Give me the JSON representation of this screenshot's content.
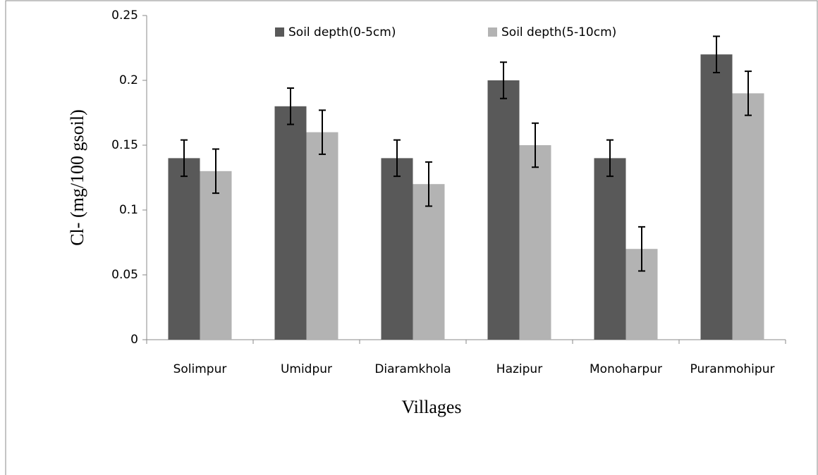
{
  "chart_data": {
    "type": "bar",
    "y_label": "Cl-  (mg/100 gsoil)",
    "x_label": "Villages",
    "categories": [
      "Solimpur",
      "Umidpur",
      "Diaramkhola",
      "Hazipur",
      "Monoharpur",
      "Puranmohipur"
    ],
    "series": [
      {
        "name": "Soil depth(0-5cm)",
        "color": "#595959",
        "values": [
          0.14,
          0.18,
          0.14,
          0.2,
          0.14,
          0.22
        ],
        "errors": [
          0.014,
          0.014,
          0.014,
          0.014,
          0.014,
          0.014
        ]
      },
      {
        "name": "Soil depth(5-10cm)",
        "color": "#b3b3b3",
        "values": [
          0.13,
          0.16,
          0.12,
          0.15,
          0.07,
          0.19
        ],
        "errors": [
          0.017,
          0.017,
          0.017,
          0.017,
          0.017,
          0.017
        ]
      }
    ],
    "ylim": [
      0,
      0.25
    ],
    "yticks": [
      0,
      0.05,
      0.1,
      0.15,
      0.2,
      0.25
    ],
    "grid": false,
    "legend": "top"
  }
}
